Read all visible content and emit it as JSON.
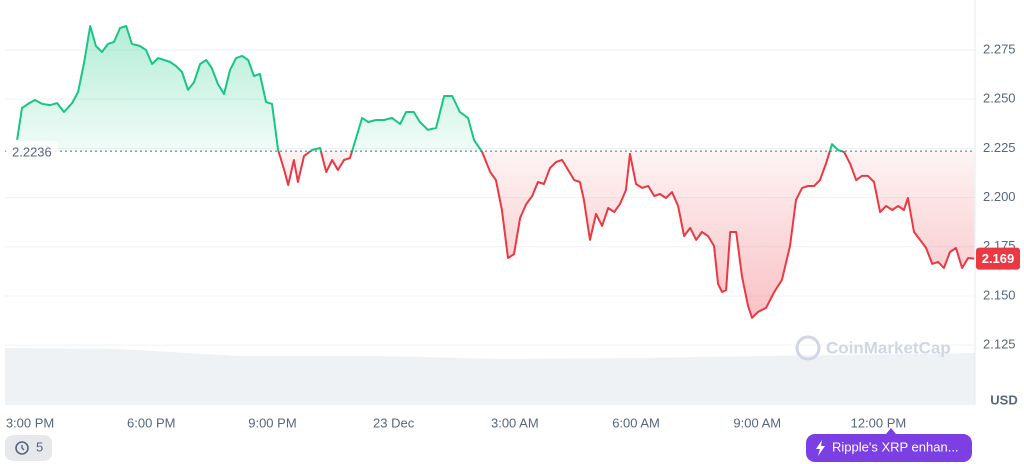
{
  "chart_data": {
    "type": "line",
    "y_label": "USD",
    "watermark": "CoinMarketCap",
    "history_count": 5,
    "news": "Ripple's XRP enhan...",
    "baseline": 2.2236,
    "current": 2.169,
    "up_color": "#16c784",
    "down_color": "#ea3943",
    "grid": true,
    "xlim": [
      -0.62,
      23.39
    ],
    "ylim": [
      2.0946,
      2.3004
    ],
    "xticks": [
      {
        "value": 0,
        "label": "3:00 PM"
      },
      {
        "value": 3,
        "label": "6:00 PM"
      },
      {
        "value": 6,
        "label": "9:00 PM"
      },
      {
        "value": 9,
        "label": "23 Dec"
      },
      {
        "value": 12,
        "label": "3:00 AM"
      },
      {
        "value": 15,
        "label": "6:00 AM"
      },
      {
        "value": 18,
        "label": "9:00 AM"
      },
      {
        "value": 21,
        "label": "12:00 PM"
      }
    ],
    "yticks": [
      2.125,
      {
        "value": 2.15,
        "label": "2.150"
      },
      2.175,
      {
        "value": 2.2,
        "label": "2.200"
      },
      2.225,
      {
        "value": 2.25,
        "label": "2.250"
      },
      2.275
    ],
    "x": [
      -0.32,
      -0.2,
      -0.05,
      0.12,
      0.3,
      0.5,
      0.67,
      0.84,
      1.04,
      1.19,
      1.34,
      1.49,
      1.63,
      1.78,
      1.93,
      2.08,
      2.23,
      2.38,
      2.52,
      2.72,
      2.87,
      3.02,
      3.17,
      3.32,
      3.47,
      3.61,
      3.76,
      3.91,
      4.06,
      4.21,
      4.36,
      4.5,
      4.65,
      4.8,
      4.95,
      5.1,
      5.25,
      5.4,
      5.54,
      5.69,
      5.84,
      5.99,
      6.14,
      6.29,
      6.39,
      6.53,
      6.63,
      6.78,
      6.98,
      7.18,
      7.33,
      7.48,
      7.62,
      7.77,
      7.92,
      8.07,
      8.22,
      8.37,
      8.56,
      8.76,
      8.96,
      9.16,
      9.31,
      9.5,
      9.65,
      9.85,
      10.05,
      10.25,
      10.45,
      10.64,
      10.84,
      10.99,
      11.19,
      11.39,
      11.53,
      11.68,
      11.83,
      11.98,
      12.13,
      12.28,
      12.43,
      12.57,
      12.72,
      12.87,
      13.02,
      13.17,
      13.32,
      13.47,
      13.61,
      13.71,
      13.86,
      14.01,
      14.16,
      14.31,
      14.46,
      14.6,
      14.75,
      14.85,
      15,
      15.15,
      15.3,
      15.45,
      15.59,
      15.74,
      15.89,
      16.04,
      16.19,
      16.34,
      16.49,
      16.63,
      16.78,
      16.93,
      17.03,
      17.13,
      17.23,
      17.33,
      17.48,
      17.62,
      17.77,
      17.87,
      18.02,
      18.22,
      18.42,
      18.61,
      18.81,
      18.96,
      19.11,
      19.26,
      19.41,
      19.55,
      19.7,
      19.85,
      20,
      20.15,
      20.3,
      20.45,
      20.59,
      20.74,
      20.89,
      21.04,
      21.19,
      21.34,
      21.49,
      21.63,
      21.73,
      21.88,
      22.03,
      22.18,
      22.33,
      22.48,
      22.62,
      22.77,
      22.92,
      23.07,
      23.22,
      23.37
    ],
    "values": [
      2.2293,
      2.2455,
      2.2476,
      2.2496,
      2.2476,
      2.247,
      2.248,
      2.2435,
      2.248,
      2.2537,
      2.2689,
      2.2872,
      2.277,
      2.274,
      2.2781,
      2.2791,
      2.2862,
      2.2872,
      2.2781,
      2.277,
      2.275,
      2.2679,
      2.2709,
      2.2699,
      2.2689,
      2.2669,
      2.2638,
      2.2547,
      2.2587,
      2.2679,
      2.2699,
      2.2658,
      2.2577,
      2.2526,
      2.2648,
      2.2709,
      2.272,
      2.2699,
      2.2618,
      2.2628,
      2.2486,
      2.2476,
      2.2242,
      2.214,
      2.2064,
      2.2191,
      2.2079,
      2.2211,
      2.2242,
      2.2252,
      2.213,
      2.2191,
      2.214,
      2.2191,
      2.2201,
      2.2303,
      2.2405,
      2.2384,
      2.2394,
      2.2394,
      2.2405,
      2.2374,
      2.2435,
      2.2435,
      2.2384,
      2.2344,
      2.2354,
      2.2516,
      2.2516,
      2.2435,
      2.2405,
      2.2293,
      2.2232,
      2.213,
      2.2089,
      2.1937,
      2.1693,
      2.1713,
      2.1896,
      2.1967,
      2.2008,
      2.2079,
      2.2069,
      2.215,
      2.2181,
      2.2191,
      2.214,
      2.2089,
      2.2079,
      2.1988,
      2.1785,
      2.1917,
      2.1856,
      2.1947,
      2.1926,
      2.1967,
      2.2038,
      2.2222,
      2.2069,
      2.2049,
      2.2059,
      2.2008,
      2.2018,
      2.1998,
      2.2028,
      2.1957,
      2.1805,
      2.1846,
      2.1785,
      2.1825,
      2.1805,
      2.1754,
      2.1561,
      2.152,
      2.153,
      2.1825,
      2.1825,
      2.1602,
      2.145,
      2.1389,
      2.1419,
      2.144,
      2.152,
      2.1581,
      2.1754,
      2.1988,
      2.2049,
      2.2059,
      2.2059,
      2.2089,
      2.2171,
      2.2272,
      2.2242,
      2.2232,
      2.2171,
      2.2089,
      2.211,
      2.211,
      2.2079,
      2.1926,
      2.1957,
      2.1937,
      2.1957,
      2.1937,
      2.1998,
      2.1825,
      2.1785,
      2.1744,
      2.1663,
      2.1673,
      2.1642,
      2.1724,
      2.1744,
      2.1642,
      2.1693,
      2.169
    ]
  }
}
